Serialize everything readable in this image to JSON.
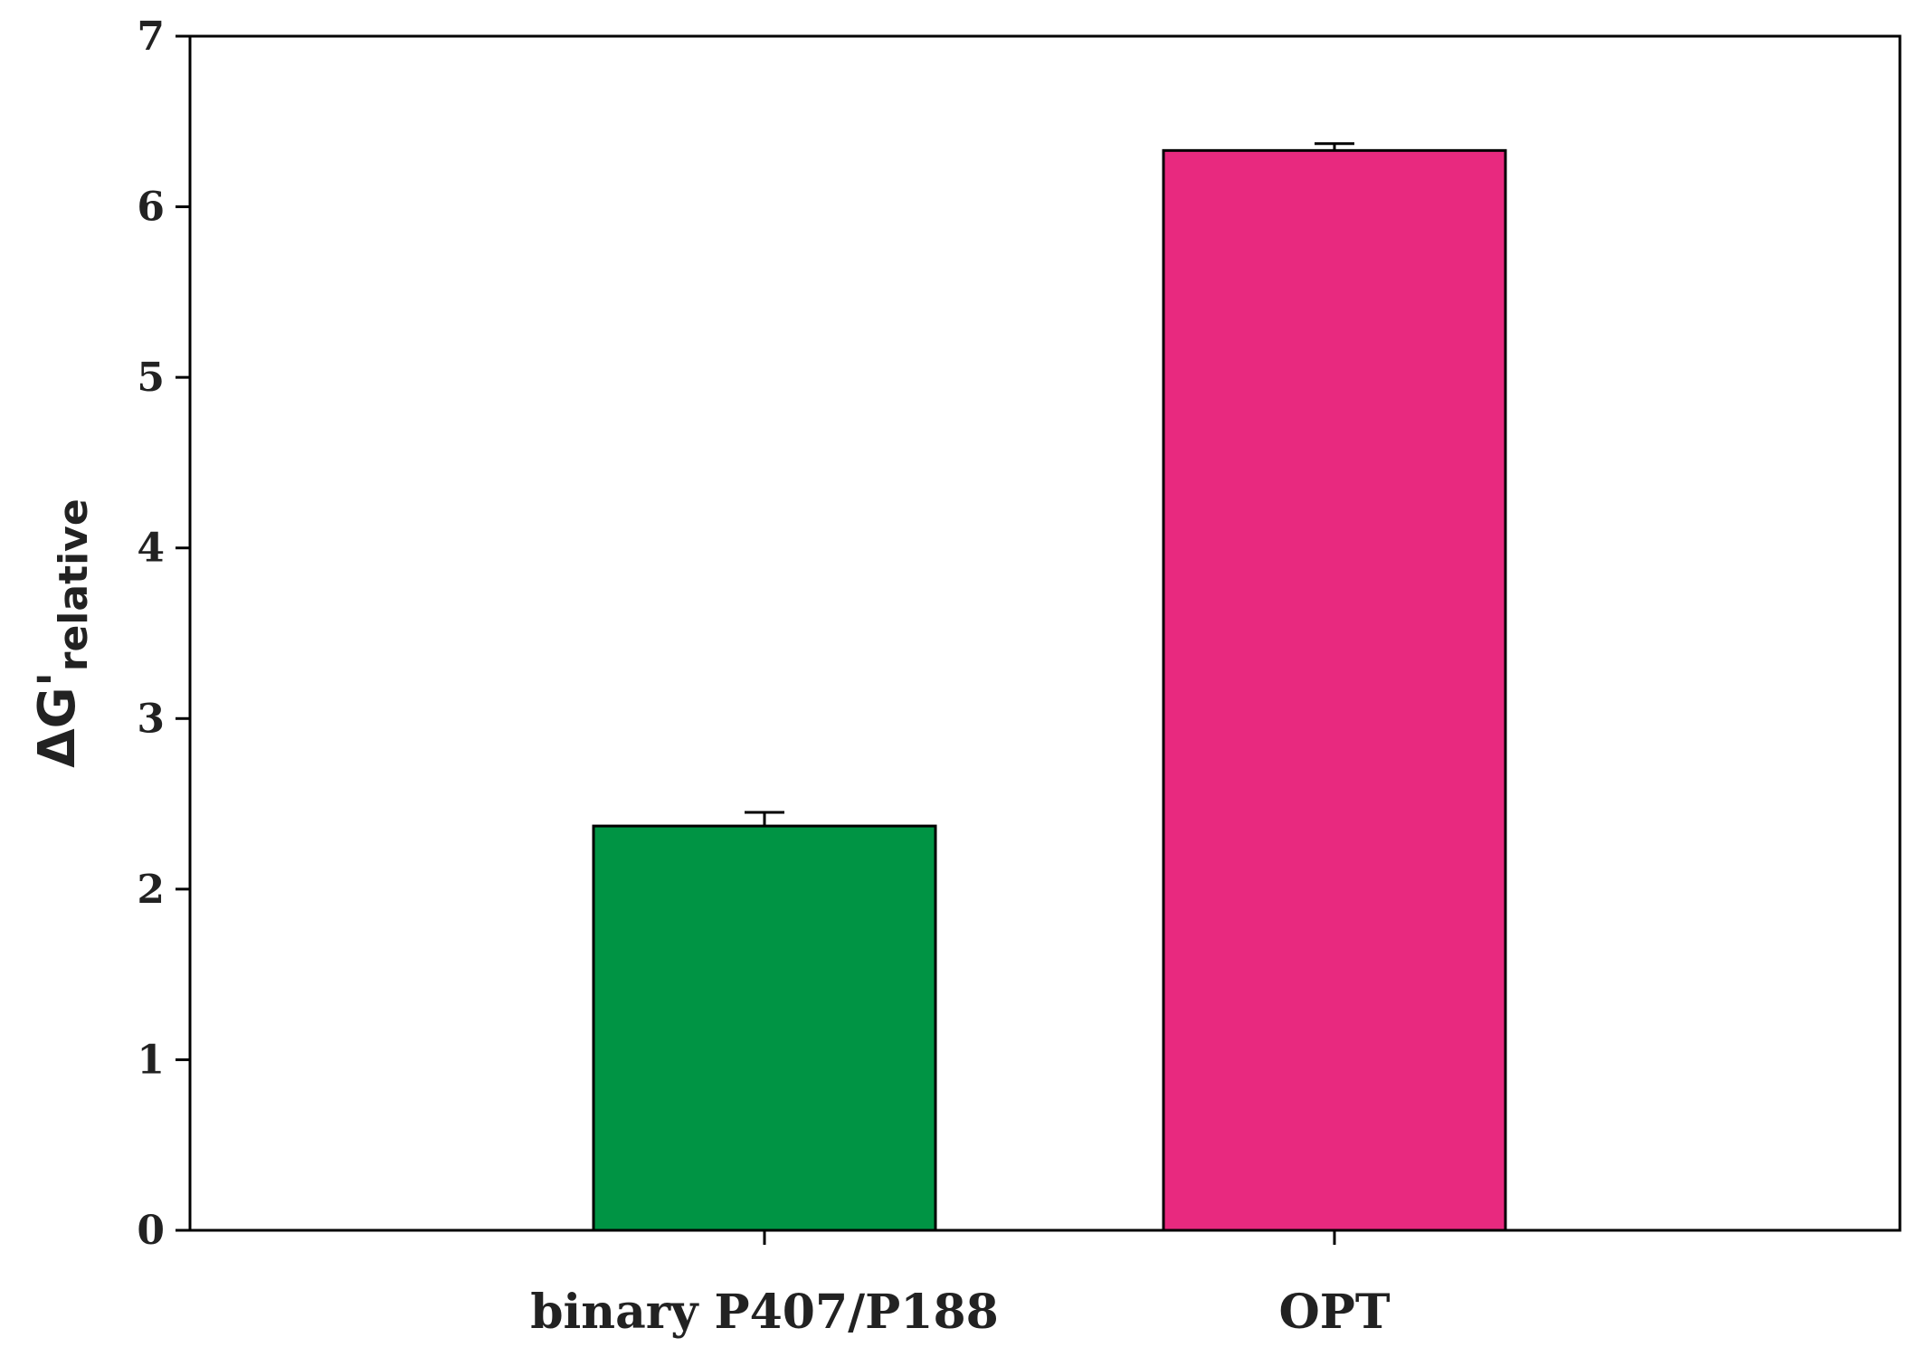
{
  "chart_data": {
    "type": "bar",
    "categories": [
      "binary P407/P188",
      "OPT"
    ],
    "values": [
      2.37,
      6.33
    ],
    "errors": [
      0.08,
      0.04
    ],
    "colors": [
      "#009444",
      "#e8297f"
    ],
    "ylabel": {
      "main": "ΔG'",
      "sub": "relative"
    },
    "ylim": [
      0,
      7
    ],
    "yticks": [
      0,
      1,
      2,
      3,
      4,
      5,
      6,
      7
    ],
    "grid": false
  }
}
